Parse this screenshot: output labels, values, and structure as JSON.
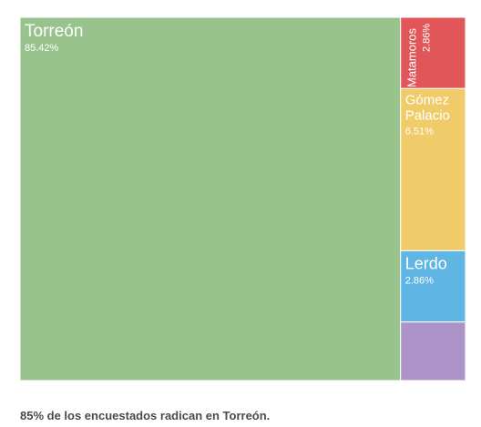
{
  "chart_data": {
    "type": "treemap",
    "title": "",
    "caption": "85% de los encuestados radican en Torreón.",
    "items": [
      {
        "name": "Torreón",
        "value": 85.42,
        "label": "85.42%",
        "color": "#98c38c",
        "show_label": true,
        "orientation": "horizontal"
      },
      {
        "name": "Matamoros",
        "value": 2.86,
        "label": "2.86%",
        "color": "#e15759",
        "show_label": true,
        "orientation": "vertical"
      },
      {
        "name": "Gómez Palacio",
        "name_lines": [
          "Gómez",
          "Palacio"
        ],
        "value": 6.51,
        "label": "6.51%",
        "color": "#f0cb69",
        "show_label": true,
        "orientation": "horizontal"
      },
      {
        "name": "Lerdo",
        "value": 2.86,
        "label": "2.86%",
        "color": "#5fb6e4",
        "show_label": true,
        "orientation": "horizontal"
      },
      {
        "name": "",
        "value": 2.35,
        "label": "",
        "color": "#ad93c8",
        "show_label": false,
        "orientation": "horizontal"
      }
    ]
  }
}
